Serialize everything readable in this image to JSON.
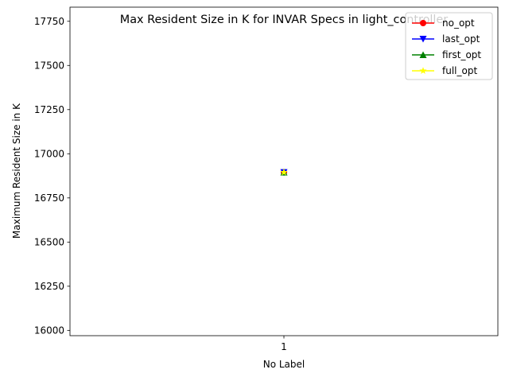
{
  "chart_data": {
    "type": "line",
    "title": "Max Resident Size in K for INVAR Specs in light_controller",
    "xlabel": "No Label",
    "ylabel": "Maximum Resident Size in K",
    "x": [
      "1"
    ],
    "ylim": [
      15970,
      17830
    ],
    "yticks": [
      16000,
      16250,
      16500,
      16750,
      17000,
      17250,
      17500,
      17750
    ],
    "grid": false,
    "legend_position": "top-right",
    "series": [
      {
        "name": "no_opt",
        "color": "#ff0000",
        "marker": "circle",
        "values": [
          16895
        ]
      },
      {
        "name": "last_opt",
        "color": "#0000ff",
        "marker": "triangle-down",
        "values": [
          16895
        ]
      },
      {
        "name": "first_opt",
        "color": "#008000",
        "marker": "triangle-up",
        "values": [
          16895
        ]
      },
      {
        "name": "full_opt",
        "color": "#ffff00",
        "marker": "star",
        "values": [
          16895
        ]
      }
    ]
  }
}
